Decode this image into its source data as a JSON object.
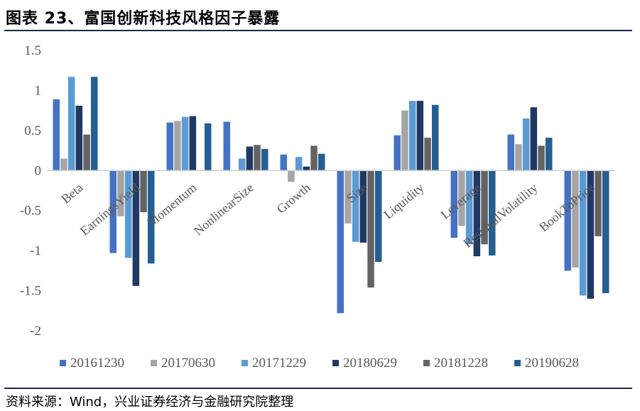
{
  "header": {
    "title": "图表 23、富国创新科技风格因子暴露"
  },
  "footer": {
    "source": "资料来源：Wind，兴业证券经济与金融研究院整理"
  },
  "chart_data": {
    "type": "bar",
    "title": "图表 23、富国创新科技风格因子暴露",
    "xlabel": "",
    "ylabel": "",
    "ylim": [
      -2,
      1.5
    ],
    "yticks": [
      1.5,
      1,
      0.5,
      0,
      -0.5,
      -1,
      -1.5,
      -2
    ],
    "ytick_labels": [
      "1.5",
      "1",
      "0.5",
      "0",
      "-0.5",
      "-1",
      "-1.5",
      "-2"
    ],
    "grid": false,
    "legend_position": "bottom",
    "categories": [
      "Beta",
      "EarningsYield",
      "Momentum",
      "NonlinearSize",
      "Growth",
      "Size",
      "Liquidity",
      "Leverage",
      "ResidualVolatility",
      "BookToPrice"
    ],
    "series": [
      {
        "name": "20161230",
        "color": "#4472c4",
        "values": [
          0.89,
          -1.03,
          0.6,
          0.61,
          0.2,
          -1.78,
          0.44,
          -0.84,
          0.45,
          -1.25
        ]
      },
      {
        "name": "20170630",
        "color": "#a5a5a5",
        "values": [
          0.15,
          -0.57,
          0.62,
          0.0,
          -0.14,
          -0.66,
          0.75,
          -0.69,
          0.33,
          -1.21
        ]
      },
      {
        "name": "20171229",
        "color": "#5b9bd5",
        "values": [
          1.17,
          -1.09,
          0.67,
          0.15,
          0.17,
          -0.89,
          0.87,
          -0.92,
          0.65,
          -1.56
        ]
      },
      {
        "name": "20180629",
        "color": "#203864",
        "values": [
          0.81,
          -1.44,
          0.68,
          0.3,
          0.05,
          -0.9,
          0.87,
          -1.07,
          0.79,
          -1.6
        ]
      },
      {
        "name": "20181228",
        "color": "#636363",
        "values": [
          0.45,
          -0.52,
          0.0,
          0.32,
          0.31,
          -1.46,
          0.41,
          -0.92,
          0.31,
          -0.82
        ]
      },
      {
        "name": "20190628",
        "color": "#255e91",
        "values": [
          1.17,
          -1.16,
          0.59,
          0.27,
          0.21,
          -1.14,
          0.82,
          -1.06,
          0.41,
          -1.53
        ]
      }
    ]
  }
}
